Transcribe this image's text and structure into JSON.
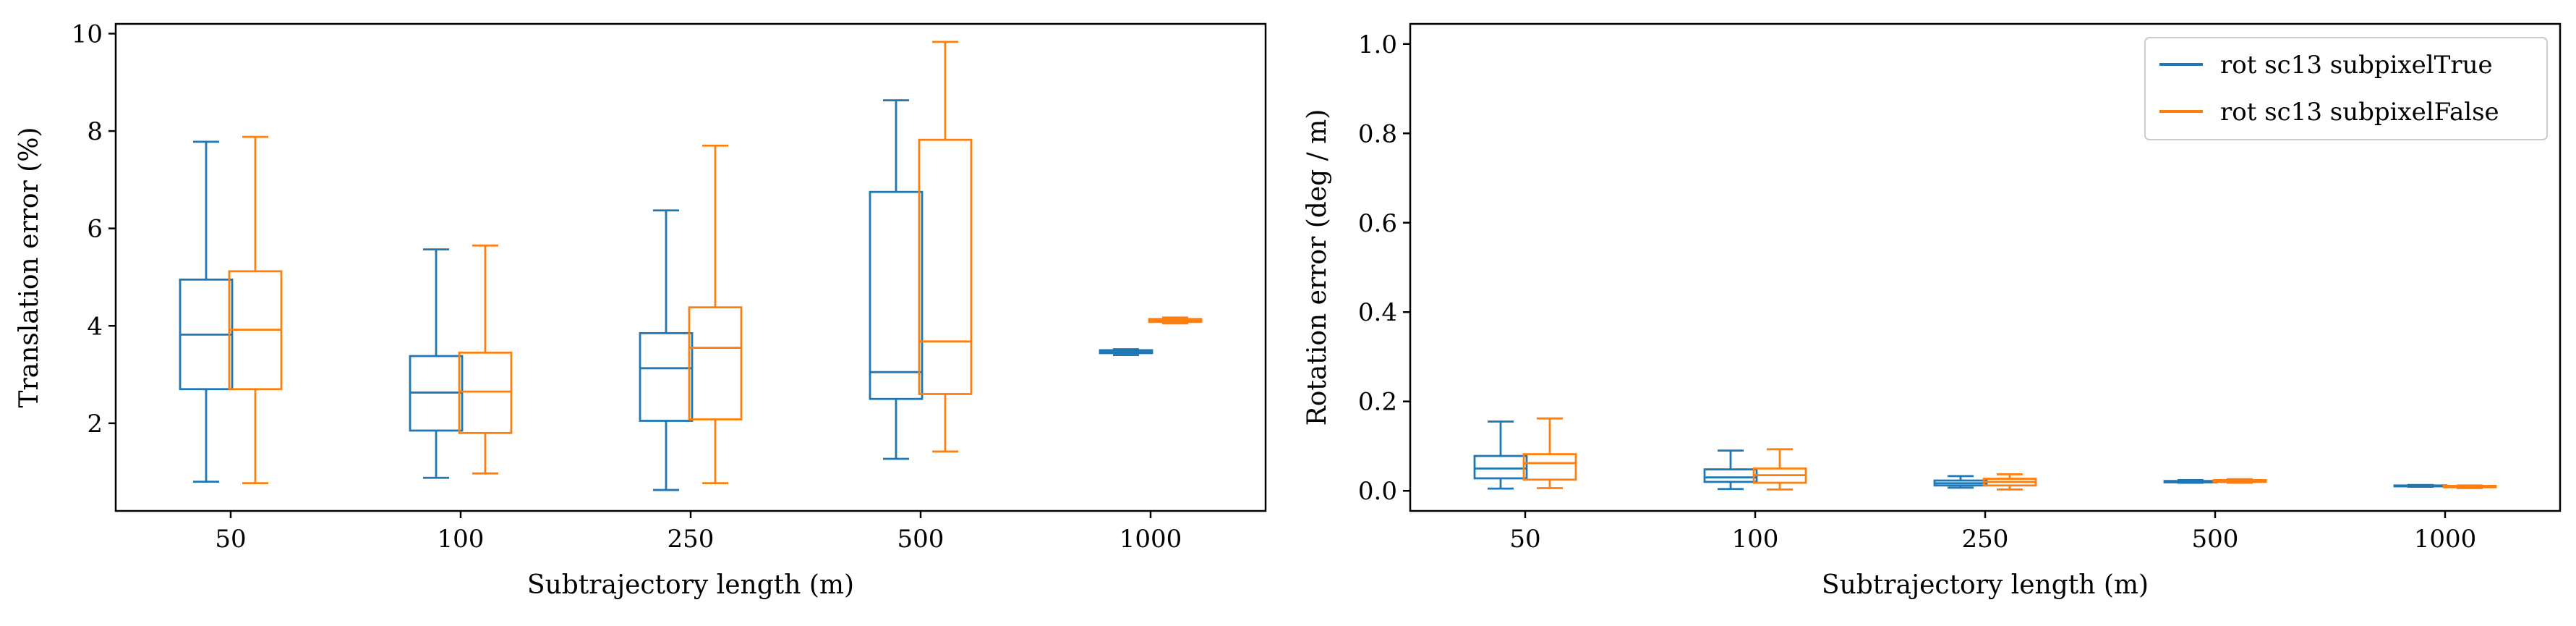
{
  "colors": {
    "true_series": "#1f77b4",
    "false_series": "#ff7f0e",
    "axes": "#000000",
    "legend_border": "#cccccc"
  },
  "chart_data": [
    {
      "type": "boxplot",
      "id": "left",
      "xlabel": "Subtrajectory length (m)",
      "ylabel": "Translation error (%)",
      "categories": [
        "50",
        "100",
        "250",
        "500",
        "1000"
      ],
      "ylim": [
        0.2,
        10.2
      ],
      "yticks": [
        2,
        4,
        6,
        8,
        10
      ],
      "grid": false,
      "series": [
        {
          "color": "true_series",
          "boxes": [
            {
              "whislo": 0.8,
              "q1": 2.7,
              "med": 3.82,
              "q3": 4.95,
              "whishi": 7.78
            },
            {
              "whislo": 0.88,
              "q1": 1.85,
              "med": 2.63,
              "q3": 3.38,
              "whishi": 5.57
            },
            {
              "whislo": 0.63,
              "q1": 2.05,
              "med": 3.13,
              "q3": 3.85,
              "whishi": 6.37
            },
            {
              "whislo": 1.27,
              "q1": 2.5,
              "med": 3.05,
              "q3": 6.75,
              "whishi": 8.63
            },
            {
              "whislo": 3.4,
              "q1": 3.44,
              "med": 3.47,
              "q3": 3.5,
              "whishi": 3.52
            }
          ]
        },
        {
          "color": "false_series",
          "boxes": [
            {
              "whislo": 0.77,
              "q1": 2.7,
              "med": 3.92,
              "q3": 5.12,
              "whishi": 7.88
            },
            {
              "whislo": 0.97,
              "q1": 1.8,
              "med": 2.65,
              "q3": 3.45,
              "whishi": 5.65
            },
            {
              "whislo": 0.77,
              "q1": 2.08,
              "med": 3.55,
              "q3": 4.38,
              "whishi": 7.7
            },
            {
              "whislo": 1.42,
              "q1": 2.6,
              "med": 3.68,
              "q3": 7.82,
              "whishi": 9.83
            },
            {
              "whislo": 4.05,
              "q1": 4.08,
              "med": 4.11,
              "q3": 4.14,
              "whishi": 4.17
            }
          ]
        }
      ]
    },
    {
      "type": "boxplot",
      "id": "right",
      "xlabel": "Subtrajectory length (m)",
      "ylabel": "Rotation error (deg / m)",
      "categories": [
        "50",
        "100",
        "250",
        "500",
        "1000"
      ],
      "ylim": [
        -0.045,
        1.045
      ],
      "yticks": [
        0.0,
        0.2,
        0.4,
        0.6,
        0.8,
        1.0
      ],
      "ytick_labels": [
        "0.0",
        "0.2",
        "0.4",
        "0.6",
        "0.8",
        "1.0"
      ],
      "grid": false,
      "legend": {
        "placement": "top-right",
        "entries": [
          "rot sc13 subpixelTrue",
          "rot sc13 subpixelFalse"
        ]
      },
      "series": [
        {
          "name": "rot sc13 subpixelTrue",
          "color": "true_series",
          "boxes": [
            {
              "whislo": 0.005,
              "q1": 0.028,
              "med": 0.05,
              "q3": 0.078,
              "whishi": 0.155
            },
            {
              "whislo": 0.004,
              "q1": 0.02,
              "med": 0.03,
              "q3": 0.048,
              "whishi": 0.09
            },
            {
              "whislo": 0.007,
              "q1": 0.012,
              "med": 0.017,
              "q3": 0.023,
              "whishi": 0.033
            },
            {
              "whislo": 0.018,
              "q1": 0.019,
              "med": 0.021,
              "q3": 0.022,
              "whishi": 0.024
            },
            {
              "whislo": 0.009,
              "q1": 0.01,
              "med": 0.011,
              "q3": 0.012,
              "whishi": 0.013
            }
          ]
        },
        {
          "name": "rot sc13 subpixelFalse",
          "color": "false_series",
          "boxes": [
            {
              "whislo": 0.006,
              "q1": 0.025,
              "med": 0.062,
              "q3": 0.082,
              "whishi": 0.162
            },
            {
              "whislo": 0.003,
              "q1": 0.018,
              "med": 0.035,
              "q3": 0.05,
              "whishi": 0.093
            },
            {
              "whislo": 0.003,
              "q1": 0.012,
              "med": 0.02,
              "q3": 0.027,
              "whishi": 0.037
            },
            {
              "whislo": 0.018,
              "q1": 0.02,
              "med": 0.022,
              "q3": 0.024,
              "whishi": 0.026
            },
            {
              "whislo": 0.006,
              "q1": 0.008,
              "med": 0.01,
              "q3": 0.011,
              "whishi": 0.012
            }
          ]
        }
      ]
    }
  ]
}
